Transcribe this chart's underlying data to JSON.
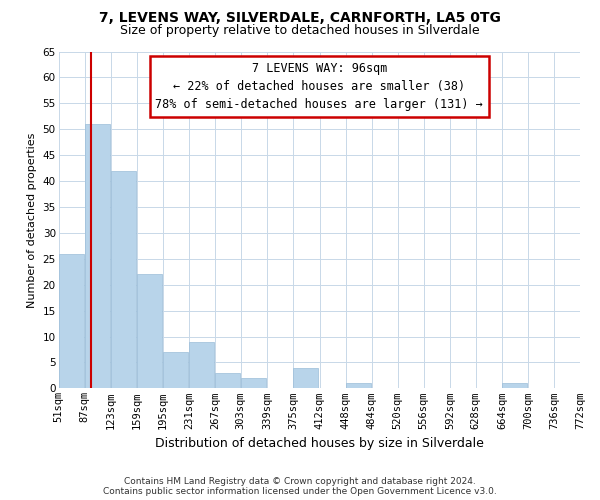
{
  "title": "7, LEVENS WAY, SILVERDALE, CARNFORTH, LA5 0TG",
  "subtitle": "Size of property relative to detached houses in Silverdale",
  "xlabel": "Distribution of detached houses by size in Silverdale",
  "ylabel": "Number of detached properties",
  "bin_labels": [
    "51sqm",
    "87sqm",
    "123sqm",
    "159sqm",
    "195sqm",
    "231sqm",
    "267sqm",
    "303sqm",
    "339sqm",
    "375sqm",
    "412sqm",
    "448sqm",
    "484sqm",
    "520sqm",
    "556sqm",
    "592sqm",
    "628sqm",
    "664sqm",
    "700sqm",
    "736sqm",
    "772sqm"
  ],
  "bar_heights": [
    26,
    51,
    42,
    22,
    7,
    9,
    3,
    2,
    0,
    4,
    0,
    1,
    0,
    0,
    0,
    0,
    0,
    1,
    0,
    0
  ],
  "bar_color": "#b8d4ea",
  "bar_edge_color": "#9bbdd8",
  "red_line_x": 96,
  "red_line_color": "#cc0000",
  "ylim": [
    0,
    65
  ],
  "yticks": [
    0,
    5,
    10,
    15,
    20,
    25,
    30,
    35,
    40,
    45,
    50,
    55,
    60,
    65
  ],
  "annotation_title": "7 LEVENS WAY: 96sqm",
  "annotation_line1": "← 22% of detached houses are smaller (38)",
  "annotation_line2": "78% of semi-detached houses are larger (131) →",
  "annotation_box_color": "#ffffff",
  "annotation_box_edge": "#cc0000",
  "footer_line1": "Contains HM Land Registry data © Crown copyright and database right 2024.",
  "footer_line2": "Contains public sector information licensed under the Open Government Licence v3.0.",
  "bg_color": "#ffffff",
  "grid_color": "#c8d8e8",
  "title_fontsize": 10,
  "subtitle_fontsize": 9,
  "xlabel_fontsize": 9,
  "ylabel_fontsize": 8,
  "tick_fontsize": 7.5,
  "annotation_fontsize": 8.5,
  "footer_fontsize": 6.5,
  "bin_width": 36
}
